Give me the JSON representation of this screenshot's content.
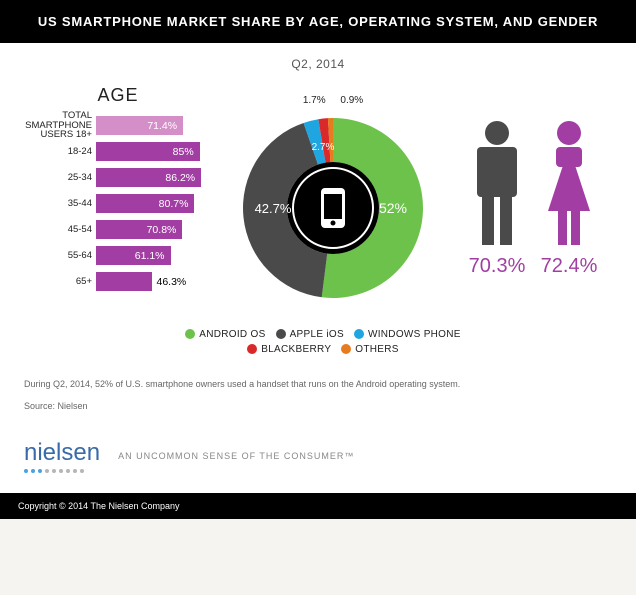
{
  "header": {
    "title": "US SMARTPHONE MARKET SHARE BY AGE, OPERATING SYSTEM, AND GENDER"
  },
  "subhead": "Q2, 2014",
  "age_chart": {
    "title": "AGE",
    "max": 100,
    "bars": [
      {
        "label": "TOTAL SMARTPHONE USERS 18+",
        "value": 71.4,
        "text": "71.4%",
        "color": "#d58fc8"
      },
      {
        "label": "18-24",
        "value": 85,
        "text": "85%",
        "color": "#a23ea3"
      },
      {
        "label": "25-34",
        "value": 86.2,
        "text": "86.2%",
        "color": "#a23ea3"
      },
      {
        "label": "35-44",
        "value": 80.7,
        "text": "80.7%",
        "color": "#a23ea3"
      },
      {
        "label": "45-54",
        "value": 70.8,
        "text": "70.8%",
        "color": "#a23ea3"
      },
      {
        "label": "55-64",
        "value": 61.1,
        "text": "61.1%",
        "color": "#a23ea3"
      },
      {
        "label": "65+",
        "value": 46.3,
        "text": "46.3%",
        "color": "#a23ea3",
        "outside": true
      }
    ]
  },
  "donut": {
    "slices": [
      {
        "label": "ANDROID OS",
        "value": 52,
        "color": "#6cc24a"
      },
      {
        "label": "APPLE iOS",
        "value": 42.7,
        "color": "#4a4a4a"
      },
      {
        "label": "WINDOWS PHONE",
        "value": 2.7,
        "color": "#1fa6e0"
      },
      {
        "label": "BLACKBERRY",
        "value": 1.7,
        "color": "#d9292b"
      },
      {
        "label": "OTHERS",
        "value": 0.9,
        "color": "#e77b1f"
      }
    ],
    "top_labels": [
      {
        "text": "1.7%"
      },
      {
        "text": "0.9%"
      }
    ],
    "side_labels": [
      {
        "text": "2.7%"
      },
      {
        "text": "42.7%"
      },
      {
        "text": "52%"
      }
    ],
    "center_icon": "phone-icon",
    "inner_radius": 46,
    "outer_radius": 90,
    "bg_ring_color": "#000000"
  },
  "legend": {
    "rows": [
      [
        {
          "label": "ANDROID OS",
          "color": "#6cc24a"
        },
        {
          "label": "APPLE iOS",
          "color": "#4a4a4a"
        },
        {
          "label": "WINDOWS PHONE",
          "color": "#1fa6e0"
        }
      ],
      [
        {
          "label": "BLACKBERRY",
          "color": "#d9292b"
        },
        {
          "label": "OTHERS",
          "color": "#e77b1f"
        }
      ]
    ]
  },
  "gender": {
    "male": {
      "value": "70.3%",
      "color": "#4a4a4a"
    },
    "female": {
      "value": "72.4%",
      "color": "#a23ea3"
    }
  },
  "footnote": "During Q2, 2014, 52% of U.S. smartphone owners used a handset that runs on the Android operating system.",
  "source": "Source: Nielsen",
  "brand": {
    "name": "nielsen",
    "tagline": "AN UNCOMMON SENSE OF THE CONSUMER™"
  },
  "copyright": "Copyright © 2014 The Nielsen Company"
}
